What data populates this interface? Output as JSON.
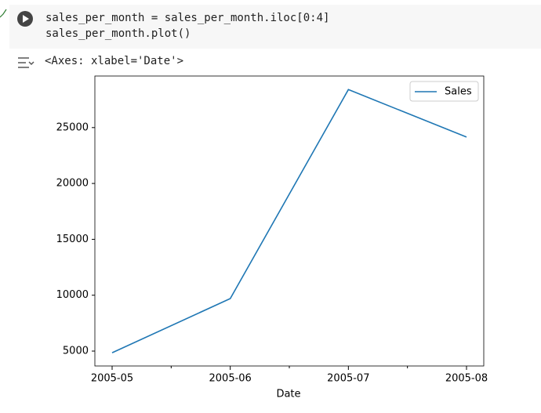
{
  "cell": {
    "code_lines": [
      "sales_per_month = sales_per_month.iloc[0:4]",
      "sales_per_month.plot()"
    ],
    "output_text": "<Axes: xlabel='Date'>"
  },
  "chart_data": {
    "type": "line",
    "xlabel": "Date",
    "x": [
      "2005-05",
      "2005-06",
      "2005-07",
      "2005-08"
    ],
    "series": [
      {
        "name": "Sales",
        "color": "#1f77b4",
        "values": [
          4850,
          9700,
          28400,
          24150
        ]
      }
    ],
    "ylim": [
      3668,
      29614
    ],
    "yticks": [
      5000,
      10000,
      15000,
      20000,
      25000
    ],
    "legend": "upper-right",
    "grid": false
  }
}
